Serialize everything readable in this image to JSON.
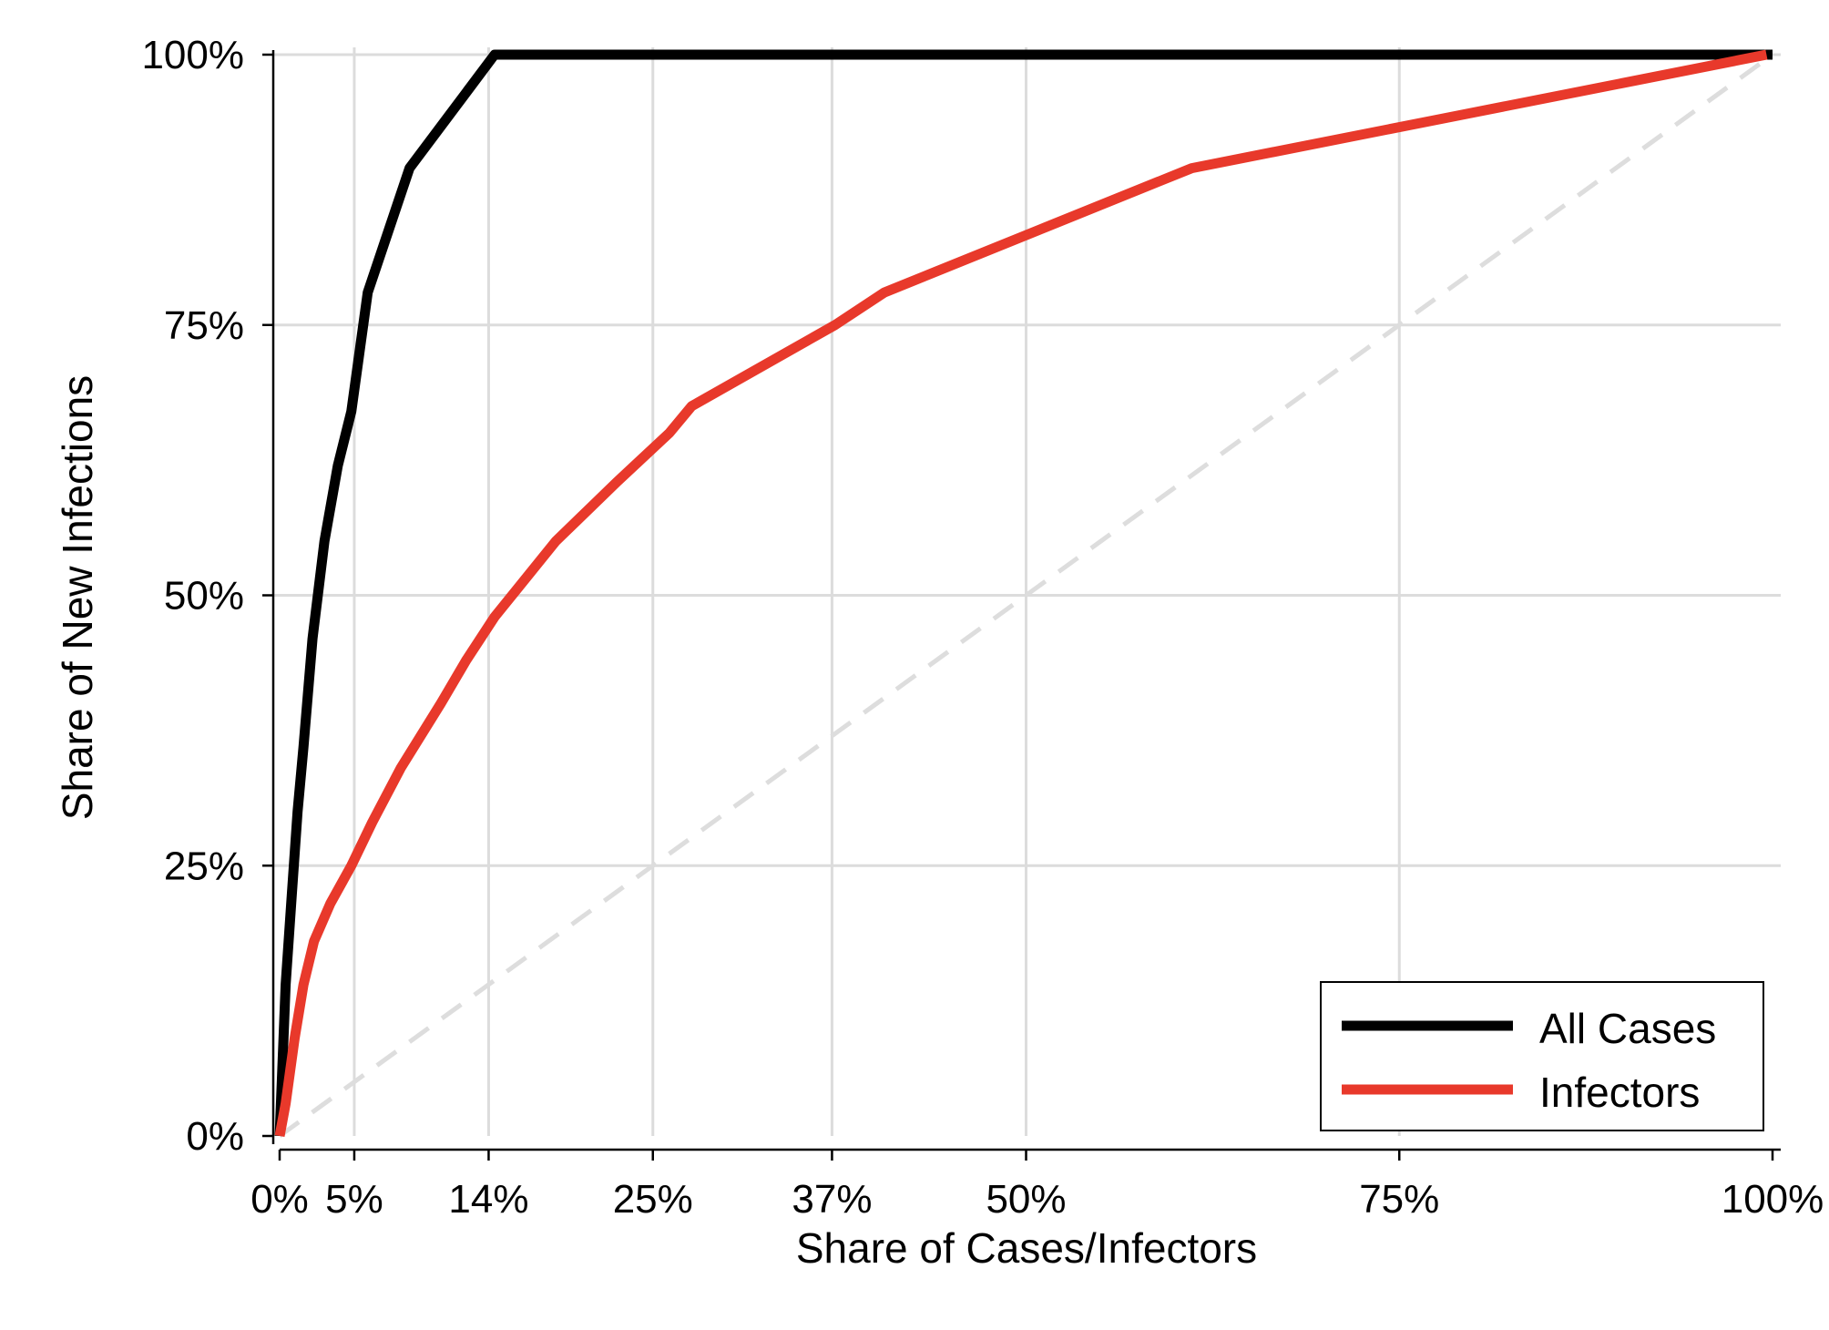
{
  "chart_data": {
    "type": "line",
    "xlabel": "Share of Cases/Infectors",
    "ylabel": "Share of New Infections",
    "xlim": [
      0,
      100
    ],
    "ylim": [
      0,
      100
    ],
    "x_ticks": [
      0,
      5,
      14,
      25,
      37,
      50,
      75,
      100
    ],
    "x_tick_labels": [
      "0%",
      "5%",
      "14%",
      "25%",
      "37%",
      "50%",
      "75%",
      "100%"
    ],
    "y_ticks": [
      0,
      25,
      50,
      75,
      100
    ],
    "y_tick_labels": [
      "0%",
      "25%",
      "50%",
      "75%",
      "100%"
    ],
    "grid": true,
    "legend_position": "bottom-right",
    "reference_line": {
      "style": "dashed",
      "color": "#dddddd",
      "x": [
        0,
        100
      ],
      "y": [
        0,
        100
      ]
    },
    "series": [
      {
        "name": "All Cases",
        "color": "#000000",
        "x": [
          0,
          0.4,
          0.8,
          1.2,
          1.6,
          2.2,
          3.0,
          3.9,
          4.8,
          5.9,
          8.7,
          14.4,
          50,
          100
        ],
        "y": [
          0,
          14,
          22,
          30,
          36,
          46,
          55,
          62,
          67,
          78,
          89.5,
          100,
          100,
          100
        ]
      },
      {
        "name": "Infectors",
        "color": "#e8392b",
        "x": [
          0,
          0.4,
          1.0,
          1.6,
          2.3,
          3.4,
          4.8,
          6.2,
          8.1,
          10.8,
          12.5,
          14.4,
          18.5,
          22.6,
          26.1,
          27.6,
          37.2,
          40.5,
          61.1,
          99.6
        ],
        "y": [
          0,
          3,
          9,
          14,
          18,
          21.5,
          25,
          29,
          34,
          40,
          44,
          48,
          55,
          60.5,
          65,
          67.5,
          75,
          78,
          89.5,
          100
        ]
      }
    ]
  }
}
